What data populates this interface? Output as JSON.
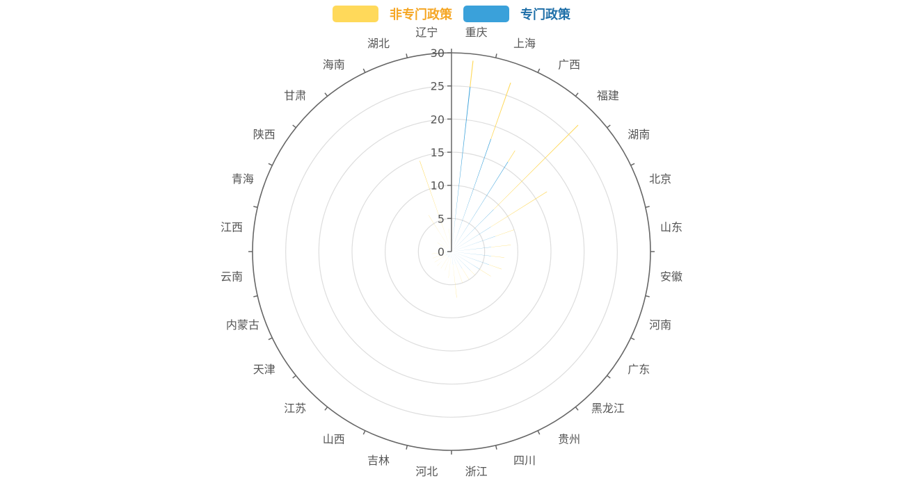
{
  "chart_data": {
    "type": "bar",
    "polar": true,
    "title": "",
    "legend_position": "top-center",
    "radius_axis": {
      "min": 0,
      "max": 30,
      "ticks": [
        0,
        5,
        10,
        15,
        20,
        25,
        30
      ]
    },
    "categories": [
      "重庆",
      "上海",
      "广西",
      "福建",
      "湖南",
      "北京",
      "山东",
      "安徽",
      "河南",
      "广东",
      "黑龙江",
      "贵州",
      "四川",
      "浙江",
      "河北",
      "吉林",
      "山西",
      "江苏",
      "天津",
      "内蒙古",
      "云南",
      "江西",
      "青海",
      "陕西",
      "甘肃",
      "海南",
      "湖北",
      "辽宁"
    ],
    "series": [
      {
        "name": "专门政策",
        "color": "#3aa1da",
        "values": [
          25,
          18,
          16,
          9,
          7,
          7,
          6,
          6,
          6,
          5,
          4,
          3,
          2,
          2,
          1,
          1,
          1,
          1,
          1,
          1,
          1,
          0.5,
          0.5,
          0.5,
          0.5,
          0.5,
          0.5,
          0.5
        ]
      },
      {
        "name": "非专门政策",
        "color": "#ffd95a",
        "values": [
          4,
          9,
          2,
          18,
          10,
          3,
          3,
          2,
          2,
          2,
          1,
          2,
          3,
          5,
          3,
          2,
          2,
          2,
          2,
          2,
          2,
          1,
          1,
          2,
          2,
          6,
          14,
          3
        ]
      }
    ]
  },
  "legend": {
    "items": [
      {
        "label": "非专门政策",
        "swatch": "#ffd95a",
        "text_color": "#f5a623"
      },
      {
        "label": "专门政策",
        "swatch": "#3aa1da",
        "text_color": "#1f6fa8"
      }
    ]
  },
  "colors": {
    "axis": "#666666",
    "grid": "#dddddd",
    "label": "#555555"
  }
}
